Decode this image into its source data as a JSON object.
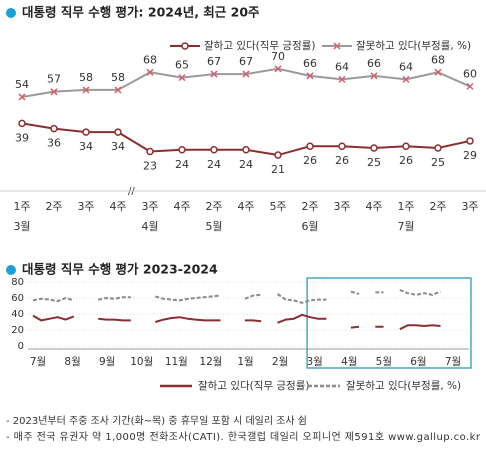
{
  "chart_data": [
    {
      "type": "line",
      "title": "대통령 직무 수행 평가: 2024년, 최근 20주",
      "categories": [
        "1주",
        "2주",
        "3주",
        "4주",
        "3주",
        "4주",
        "2주",
        "4주",
        "5주",
        "2주",
        "3주",
        "4주",
        "1주",
        "2주",
        "3주"
      ],
      "month_categories": [
        "3월",
        null,
        null,
        null,
        "4월",
        null,
        "5월",
        null,
        null,
        "6월",
        null,
        null,
        "7월",
        null,
        null
      ],
      "ylim": [
        0,
        100
      ],
      "series": [
        {
          "name": "잘하고 있다(직무 긍정률)",
          "color": "#8b2e2e",
          "marker": "circle",
          "values": [
            39,
            36,
            34,
            34,
            23,
            24,
            24,
            24,
            21,
            26,
            26,
            25,
            26,
            25,
            29
          ]
        },
        {
          "name": "잘못하고 있다(부정률, %)",
          "color": "#9a9a9a",
          "marker_color": "#d0606a",
          "marker": "x",
          "values": [
            54,
            57,
            58,
            58,
            68,
            65,
            67,
            67,
            70,
            66,
            64,
            66,
            64,
            68,
            60
          ]
        }
      ]
    },
    {
      "type": "line",
      "title": "대통령 직무 수행 평가 2023-2024",
      "month_ticks": [
        "7월",
        "8월",
        "9월",
        "10월",
        "11월",
        "12월",
        "1월",
        "2월",
        "3월",
        "4월",
        "5월",
        "6월",
        "7월"
      ],
      "ylim": [
        0,
        80
      ],
      "yticks": [
        0,
        20,
        40,
        60,
        80
      ],
      "grid": true,
      "series": [
        {
          "name": "잘하고 있다(직무 긍정률)",
          "color": "#8b2e2e",
          "dash": false,
          "values": [
            38,
            32,
            34,
            36,
            33,
            37,
            null,
            null,
            34,
            33,
            33,
            32,
            32,
            null,
            null,
            30,
            33,
            35,
            36,
            34,
            33,
            32,
            32,
            32,
            null,
            null,
            32,
            32,
            31,
            null,
            29,
            33,
            34,
            39,
            36,
            34,
            34,
            null,
            null,
            23,
            24,
            null,
            24,
            24,
            null,
            21,
            26,
            26,
            25,
            26,
            25,
            null,
            null,
            29
          ]
        },
        {
          "name": "잘못하고 있다(부정률, %)",
          "color": "#8a8a8a",
          "dash": true,
          "values": [
            57,
            59,
            58,
            56,
            60,
            57,
            null,
            null,
            58,
            60,
            59,
            61,
            61,
            null,
            null,
            62,
            59,
            58,
            57,
            59,
            60,
            61,
            62,
            63,
            null,
            null,
            59,
            63,
            64,
            null,
            65,
            58,
            57,
            54,
            57,
            58,
            58,
            null,
            null,
            68,
            65,
            null,
            67,
            67,
            null,
            70,
            66,
            64,
            66,
            64,
            68,
            null,
            null,
            60
          ]
        }
      ]
    },
    {
      "type": "notes",
      "lines": [
        "- 2023년부터 주중 조사 기간(화~목) 중 휴무일 포함 시 데일리 조사 쉼",
        "- 매주 전국 유권자 약 1,000명 전화조사(CATI). 한국갤럽 데일리 오피니언 제591호 www.gallup.co.kr"
      ]
    }
  ]
}
